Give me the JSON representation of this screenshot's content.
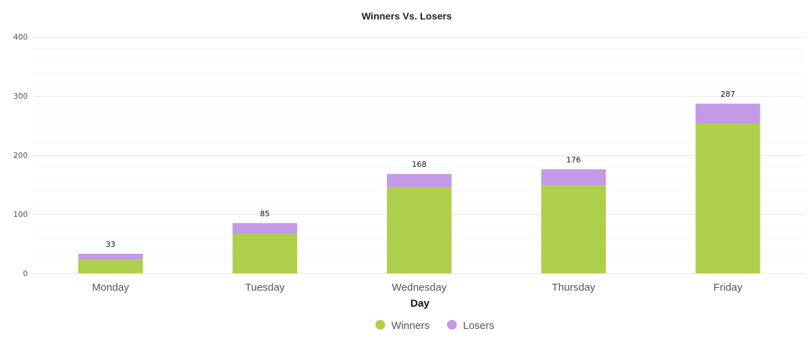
{
  "chart_data": {
    "type": "bar",
    "stacked": true,
    "title": "Winners Vs. Losers",
    "xlabel": "Day",
    "ylabel": "",
    "categories": [
      "Monday",
      "Tuesday",
      "Wednesday",
      "Thursday",
      "Friday"
    ],
    "series": [
      {
        "name": "Winners",
        "color": "#aecf4b",
        "values": [
          23,
          67,
          145,
          149,
          253
        ]
      },
      {
        "name": "Losers",
        "color": "#c39ae5",
        "values": [
          10,
          18,
          23,
          27,
          34
        ]
      }
    ],
    "totals": [
      "33",
      "85",
      "168",
      "176",
      "287"
    ],
    "ylim": [
      0,
      400
    ],
    "yticks": [
      "0",
      "100",
      "200",
      "300",
      "400"
    ],
    "grid": true,
    "legend_position": "bottom-center"
  }
}
